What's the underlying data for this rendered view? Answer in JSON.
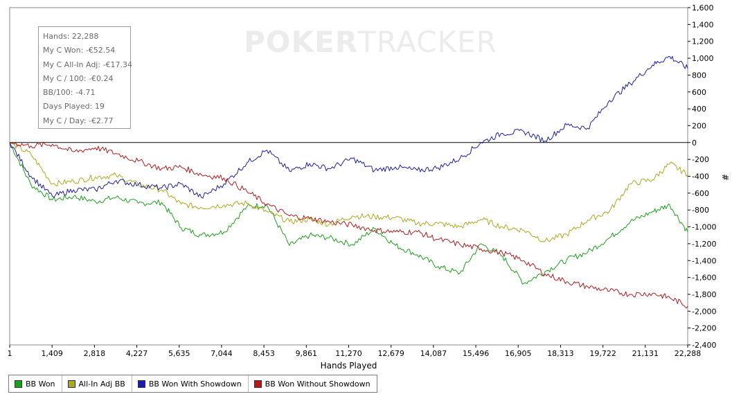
{
  "watermark": {
    "bold": "POKER",
    "light": "TRACKER"
  },
  "stats": [
    "Hands: 22,288",
    "My C Won: -€52.54",
    "My C All-In Adj: -€17.34",
    "My C / 100: -€0.24",
    "BB/100: -4.71",
    "Days Played: 19",
    "My C / Day: -€2.77"
  ],
  "chart_data": {
    "type": "line",
    "xlabel": "Hands Played",
    "ylabel": "#",
    "xlim": [
      1,
      22288
    ],
    "ylim": [
      -2400,
      1600
    ],
    "x_ticks": [
      "1",
      "1,409",
      "2,818",
      "4,227",
      "5,635",
      "7,044",
      "8,453",
      "9,861",
      "11,270",
      "12,679",
      "14,087",
      "15,496",
      "16,905",
      "18,313",
      "19,722",
      "21,131",
      "22,288"
    ],
    "y_ticks": [
      1600,
      1400,
      1200,
      1000,
      800,
      600,
      400,
      200,
      0,
      -200,
      -400,
      -600,
      -800,
      -1000,
      -1200,
      -1400,
      -1600,
      -1800,
      -2000,
      -2200,
      -2400
    ],
    "y_tick_labels": [
      "1,600",
      "1,400",
      "1,200",
      "1,000",
      "800",
      "600",
      "400",
      "200",
      "0",
      "-200",
      "-400",
      "-600",
      "-800",
      "-1,000",
      "-1,200",
      "-1,400",
      "-1,600",
      "-1,800",
      "-2,000",
      "-2,200",
      "-2,400"
    ],
    "grid": false,
    "legend_position": "bottom",
    "x": [
      1,
      700,
      1409,
      2100,
      2818,
      3500,
      4227,
      5000,
      5635,
      6300,
      7044,
      7800,
      8453,
      9200,
      9861,
      10500,
      11270,
      12000,
      12679,
      13400,
      14087,
      14800,
      15496,
      16200,
      16905,
      17600,
      18313,
      19000,
      19722,
      20400,
      21131,
      21700,
      22288
    ],
    "series": [
      {
        "name": "BB Won",
        "color": "#1e9e1e",
        "values": [
          0,
          -500,
          -680,
          -640,
          -700,
          -650,
          -720,
          -710,
          -1010,
          -1100,
          -1060,
          -760,
          -740,
          -1220,
          -1100,
          -1130,
          -1210,
          -1020,
          -1220,
          -1330,
          -1470,
          -1550,
          -1200,
          -1350,
          -1670,
          -1530,
          -1390,
          -1300,
          -1130,
          -940,
          -820,
          -740,
          -1060
        ]
      },
      {
        "name": "All-In Adj BB",
        "color": "#aaaa22",
        "values": [
          0,
          -140,
          -490,
          -460,
          -410,
          -390,
          -500,
          -560,
          -730,
          -770,
          -740,
          -720,
          -820,
          -940,
          -910,
          -970,
          -870,
          -880,
          -890,
          -960,
          -960,
          -1000,
          -910,
          -1000,
          -1040,
          -1170,
          -1090,
          -920,
          -810,
          -490,
          -440,
          -250,
          -380
        ]
      },
      {
        "name": "BB Won With Showdown",
        "color": "#1c1ca8",
        "values": [
          0,
          -400,
          -640,
          -560,
          -560,
          -450,
          -500,
          -540,
          -490,
          -650,
          -490,
          -240,
          -90,
          -340,
          -250,
          -310,
          -190,
          -330,
          -290,
          -330,
          -300,
          -190,
          0,
          110,
          130,
          20,
          210,
          170,
          500,
          700,
          920,
          1020,
          880
        ]
      },
      {
        "name": "BB Won Without Showdown",
        "color": "#b01c1c",
        "values": [
          0,
          -40,
          -20,
          -110,
          -60,
          -130,
          -220,
          -310,
          -290,
          -380,
          -420,
          -580,
          -730,
          -870,
          -900,
          -940,
          -980,
          -1040,
          -1060,
          -1060,
          -1150,
          -1210,
          -1260,
          -1310,
          -1400,
          -1560,
          -1650,
          -1710,
          -1760,
          -1800,
          -1790,
          -1840,
          -1940
        ]
      }
    ]
  }
}
